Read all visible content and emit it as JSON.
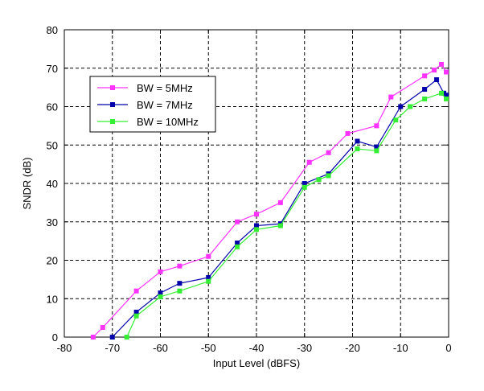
{
  "chart_data": {
    "type": "line",
    "title": "",
    "xlabel": "Input Level (dBFS)",
    "ylabel": "SNDR (dB)",
    "xlim": [
      -80,
      0
    ],
    "ylim": [
      0,
      80
    ],
    "xticks": [
      -80,
      -70,
      -60,
      -50,
      -40,
      -30,
      -20,
      -10,
      0
    ],
    "yticks": [
      0,
      10,
      20,
      30,
      40,
      50,
      60,
      70,
      80
    ],
    "xtick_labels": [
      "-80",
      "-70",
      "-60",
      "-50",
      "-40",
      "-30",
      "-20",
      "-10",
      "0"
    ],
    "ytick_labels": [
      "0",
      "10",
      "20",
      "30",
      "40",
      "50",
      "60",
      "70",
      "80"
    ],
    "grid": true,
    "legend_position": "upper-left",
    "series": [
      {
        "name": "BW = 5MHz",
        "color": "#ff33ff",
        "x": [
          -74,
          -72,
          -65,
          -60,
          -56,
          -50,
          -44,
          -40,
          -35,
          -29,
          -25,
          -21,
          -15,
          -12,
          -5,
          -3,
          -1.5,
          -0.5
        ],
        "y": [
          0,
          2.5,
          12,
          17,
          18.5,
          21,
          30,
          32,
          35,
          45.5,
          48,
          53,
          55,
          62.5,
          68,
          69.5,
          71,
          69
        ]
      },
      {
        "name": "BW = 7MHz",
        "color": "#0000aa",
        "x": [
          -70,
          -65,
          -60,
          -56,
          -50,
          -44,
          -40,
          -35,
          -30,
          -25,
          -19,
          -15,
          -10,
          -5,
          -2.5,
          -1,
          -0.5
        ],
        "y": [
          0,
          6.5,
          11.5,
          14,
          15.5,
          24.5,
          29,
          29.5,
          40,
          42.5,
          51,
          49.5,
          60,
          64.5,
          67,
          63.5,
          63
        ]
      },
      {
        "name": "BW = 10MHz",
        "color": "#33ee33",
        "x": [
          -67,
          -65,
          -60,
          -56,
          -50,
          -44,
          -40,
          -35,
          -30,
          -27,
          -25,
          -19,
          -15,
          -11,
          -8,
          -5,
          -1.5,
          -0.5
        ],
        "y": [
          0,
          5.5,
          10.5,
          12,
          14.5,
          23.5,
          28,
          29,
          39,
          41,
          42,
          49,
          48.5,
          56.5,
          60,
          62,
          63.5,
          62
        ]
      }
    ]
  }
}
